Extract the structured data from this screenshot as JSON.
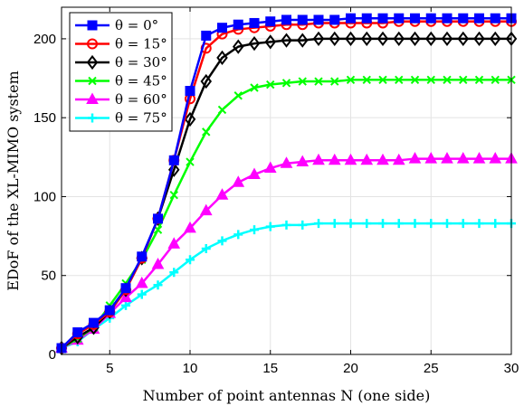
{
  "chart_data": {
    "type": "line",
    "title": "",
    "xlabel": "Number of point antennas N (one side)",
    "ylabel": "EDoF of the XL-MIMO system",
    "xlim": [
      2,
      30
    ],
    "ylim": [
      0,
      220
    ],
    "xticks": [
      "5",
      "10",
      "15",
      "20",
      "25",
      "30"
    ],
    "yticks": [
      "0",
      "50",
      "100",
      "150",
      "200"
    ],
    "grid": true,
    "legend_position": "top-left",
    "x": [
      2,
      3,
      4,
      5,
      6,
      7,
      8,
      9,
      10,
      11,
      12,
      13,
      14,
      15,
      16,
      17,
      18,
      19,
      20,
      21,
      22,
      23,
      24,
      25,
      26,
      27,
      28,
      29,
      30
    ],
    "series": [
      {
        "name": "θ = 0°",
        "color": "#0000ff",
        "marker": "square",
        "values": [
          4,
          14,
          20,
          28,
          42,
          62,
          86,
          123,
          167,
          202,
          207,
          209,
          210,
          211,
          212,
          212,
          212,
          212,
          213,
          213,
          213,
          213,
          213,
          213,
          213,
          213,
          213,
          213,
          213
        ]
      },
      {
        "name": "θ = 15°",
        "color": "#ff0000",
        "marker": "circle",
        "values": [
          4,
          13,
          19,
          27,
          41,
          61,
          86,
          123,
          162,
          194,
          203,
          206,
          207,
          208,
          209,
          209,
          210,
          210,
          210,
          210,
          210,
          211,
          211,
          211,
          211,
          211,
          211,
          211,
          211
        ]
      },
      {
        "name": "θ = 30°",
        "color": "#000000",
        "marker": "diamond",
        "values": [
          4,
          11,
          17,
          27,
          41,
          61,
          86,
          117,
          149,
          173,
          188,
          195,
          197,
          198,
          199,
          199,
          200,
          200,
          200,
          200,
          200,
          200,
          200,
          200,
          200,
          200,
          200,
          200,
          200
        ]
      },
      {
        "name": "θ = 45°",
        "color": "#00ff00",
        "marker": "x",
        "values": [
          4,
          10,
          17,
          31,
          45,
          60,
          79,
          101,
          122,
          141,
          155,
          164,
          169,
          171,
          172,
          173,
          173,
          173,
          174,
          174,
          174,
          174,
          174,
          174,
          174,
          174,
          174,
          174,
          174
        ]
      },
      {
        "name": "θ = 60°",
        "color": "#ff00ff",
        "marker": "triangle",
        "values": [
          4,
          9,
          16,
          26,
          36,
          45,
          57,
          70,
          80,
          91,
          101,
          109,
          114,
          118,
          121,
          122,
          123,
          123,
          123,
          123,
          123,
          123,
          124,
          124,
          124,
          124,
          124,
          124,
          124
        ]
      },
      {
        "name": "θ = 75°",
        "color": "#00ffff",
        "marker": "plus",
        "values": [
          4,
          8,
          16,
          23,
          31,
          38,
          44,
          52,
          60,
          67,
          72,
          76,
          79,
          81,
          82,
          82,
          83,
          83,
          83,
          83,
          83,
          83,
          83,
          83,
          83,
          83,
          83,
          83,
          83
        ]
      }
    ]
  }
}
